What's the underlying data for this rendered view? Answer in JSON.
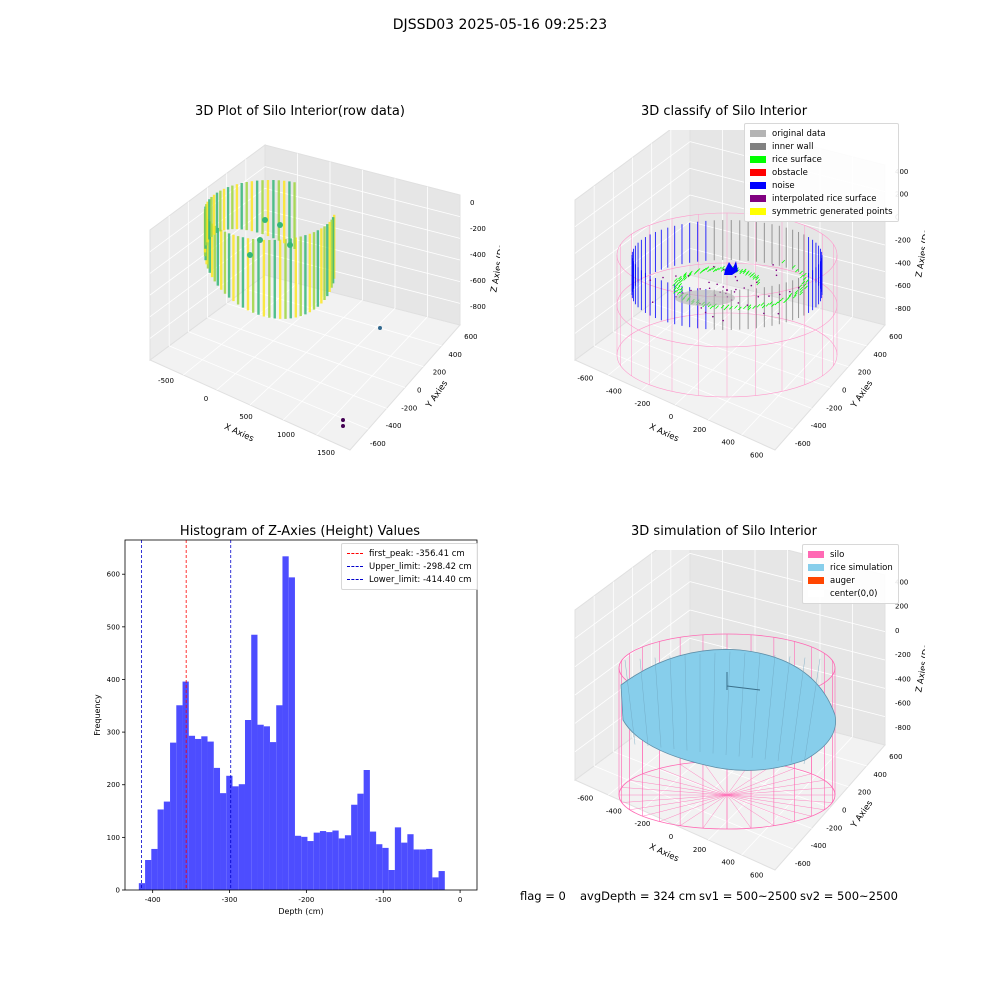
{
  "figure": {
    "suptitle": "DJSSD03 2025-05-16 09:25:23"
  },
  "panels": {
    "raw": {
      "title": "3D Plot of Silo Interior(row data)",
      "xlabel": "X Axies",
      "ylabel": "Y Axies",
      "zlabel": "Z Axies (Depth)",
      "xticks": [
        "-500",
        "0",
        "500",
        "1000",
        "1500"
      ],
      "yticks": [
        "600",
        "400",
        "200",
        "0",
        "-200",
        "-400",
        "-600"
      ],
      "zticks": [
        "0",
        "-200",
        "-400",
        "-600",
        "-800"
      ],
      "colormap": [
        "#440154",
        "#31688e",
        "#35b779",
        "#fde725"
      ]
    },
    "classify": {
      "title": "3D classify of Silo Interior",
      "xlabel": "X Axies",
      "ylabel": "Y Axies",
      "zlabel": "Z Axies (Depth)",
      "xticks": [
        "-600",
        "-400",
        "-200",
        "0",
        "200",
        "400",
        "600"
      ],
      "yticks": [
        "600",
        "400",
        "200",
        "0",
        "-200",
        "-400",
        "-600"
      ],
      "zticks": [
        "400",
        "200",
        "0",
        "-200",
        "-400",
        "-600",
        "-800"
      ],
      "legend": [
        {
          "label": "original data",
          "color": "#b3b3b3"
        },
        {
          "label": "inner wall",
          "color": "#808080"
        },
        {
          "label": "rice surface",
          "color": "#00ff00"
        },
        {
          "label": "obstacle",
          "color": "#ff0000"
        },
        {
          "label": "noise",
          "color": "#0000ff"
        },
        {
          "label": "interpolated rice surface",
          "color": "#800080"
        },
        {
          "label": "symmetric generated points",
          "color": "#ffff00"
        }
      ]
    },
    "simulation": {
      "title": "3D simulation of Silo Interior",
      "xlabel": "X Axies",
      "ylabel": "Y Axies",
      "zlabel": "Z Axies (Depth)",
      "xticks": [
        "-600",
        "-400",
        "-200",
        "0",
        "200",
        "400",
        "600"
      ],
      "yticks": [
        "600",
        "400",
        "200",
        "0",
        "-200",
        "-400",
        "-600"
      ],
      "zticks": [
        "400",
        "200",
        "0",
        "-200",
        "-400",
        "-600",
        "-800"
      ],
      "legend": [
        {
          "label": "silo",
          "color": "#ff69b4"
        },
        {
          "label": "rice simulation",
          "color": "#87ceeb"
        },
        {
          "label": "auger",
          "color": "#ff4500"
        },
        {
          "label": "center(0,0)",
          "color": "#ffffff"
        }
      ]
    }
  },
  "chart_data": {
    "type": "bar",
    "title": "Histogram of Z-Axies (Height) Values",
    "xlabel": "Depth (cm)",
    "ylabel": "Frequency",
    "xlim": [
      -436,
      22
    ],
    "ylim": [
      0,
      665
    ],
    "xticks": [
      -400,
      -300,
      -200,
      -100,
      0
    ],
    "yticks": [
      0,
      100,
      200,
      300,
      400,
      500,
      600
    ],
    "bar_color": "#4d4dff",
    "bin_start": -418,
    "bin_width": 8.125,
    "counts": [
      13,
      57,
      78,
      153,
      168,
      280,
      351,
      396,
      293,
      287,
      292,
      282,
      232,
      184,
      217,
      197,
      201,
      323,
      485,
      314,
      311,
      281,
      351,
      634,
      594,
      103,
      101,
      93,
      109,
      112,
      110,
      113,
      98,
      104,
      162,
      183,
      228,
      111,
      87,
      80,
      38,
      119,
      90,
      106,
      77,
      77,
      78,
      24,
      36
    ],
    "vlines": [
      {
        "x": -356.41,
        "color": "#ff0000",
        "label": "first_peak: -356.41 cm"
      },
      {
        "x": -298.42,
        "color": "#0000cc",
        "label": "Upper_limit: -298.42 cm"
      },
      {
        "x": -414.4,
        "color": "#0000cc",
        "label": "Lower_limit: -414.40 cm"
      }
    ],
    "legend_position": "upper right",
    "grid": false
  },
  "status_line": {
    "flag": "flag = 0",
    "avg": "avgDepth = 324 cm",
    "sv1": "sv1 = 500~2500",
    "sv2": "sv2 = 500~2500"
  }
}
